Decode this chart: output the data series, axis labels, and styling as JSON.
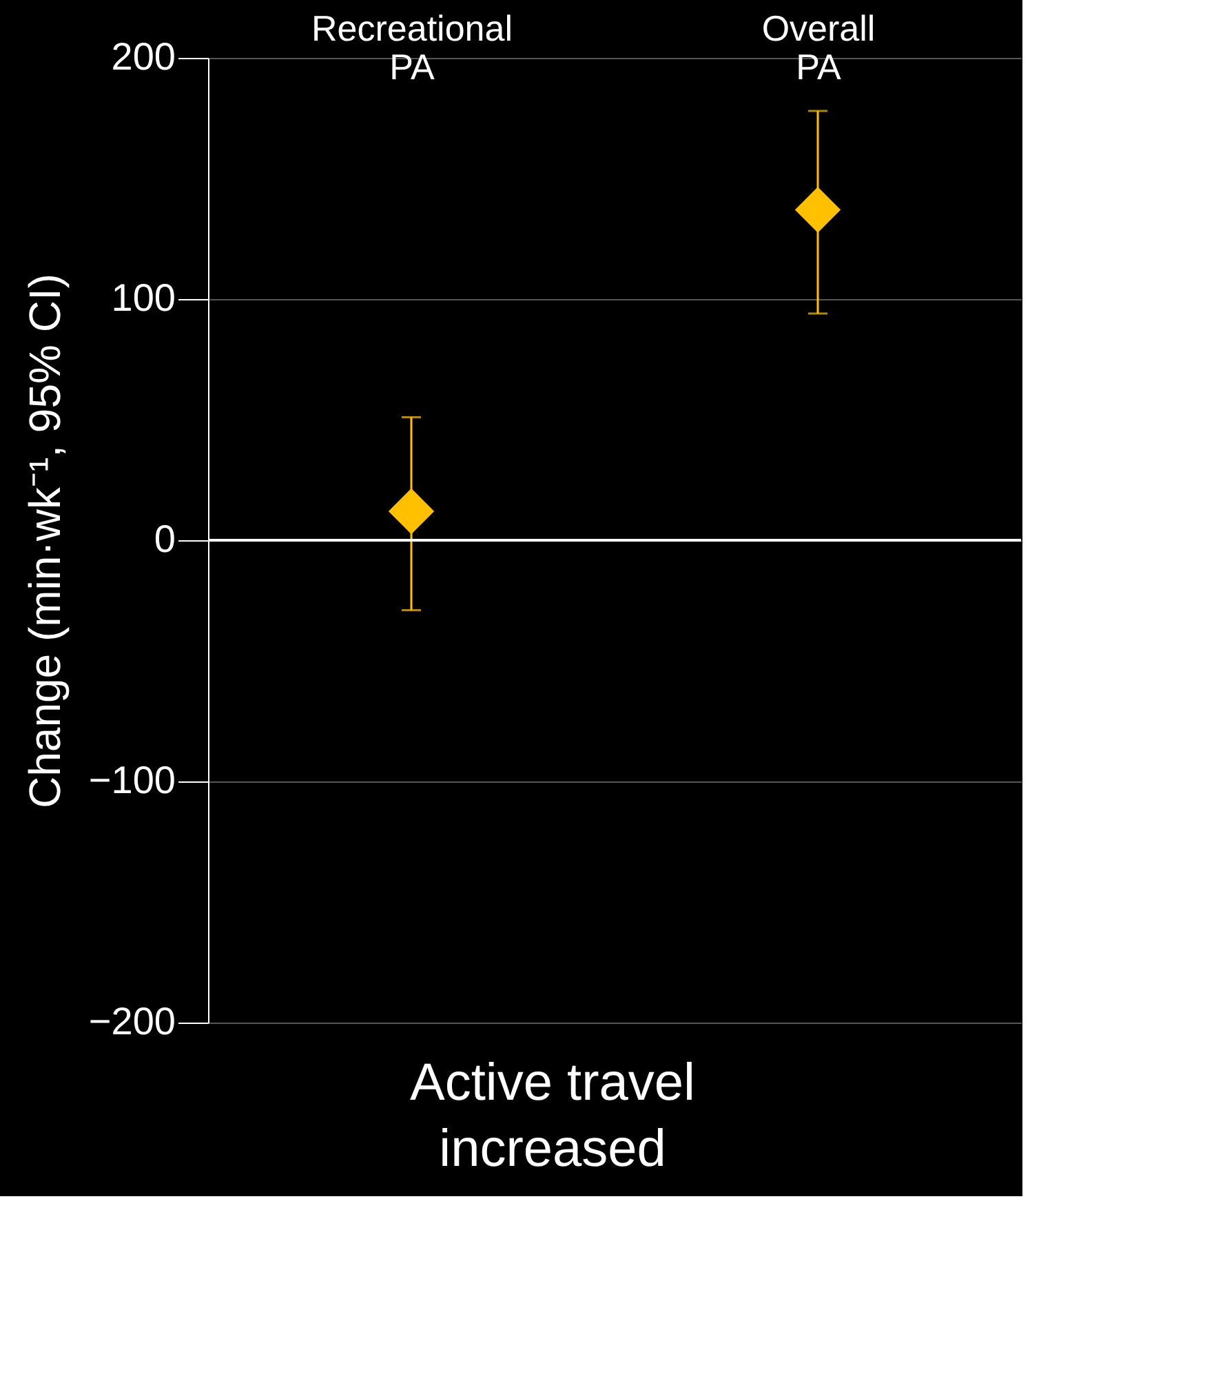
{
  "chart_data": {
    "type": "scatter",
    "xlabel": "Active travel\nincreased",
    "ylabel": "Change (min·wk⁻¹, 95% CI)",
    "categories": [
      "Recreational PA",
      "Overall PA"
    ],
    "series": [
      {
        "color": "#ffc000",
        "values": [
          12,
          137
        ],
        "errors": [
          [
            -29,
            51
          ],
          [
            94,
            178
          ]
        ]
      }
    ],
    "marker": "diamond",
    "ylim": [
      -200,
      200
    ],
    "yticks": [
      -200,
      -100,
      0,
      100,
      200
    ],
    "grid": "y",
    "ref_lines": [
      {
        "axis": "y",
        "value": 0,
        "color": "#ffffff"
      }
    ]
  }
}
